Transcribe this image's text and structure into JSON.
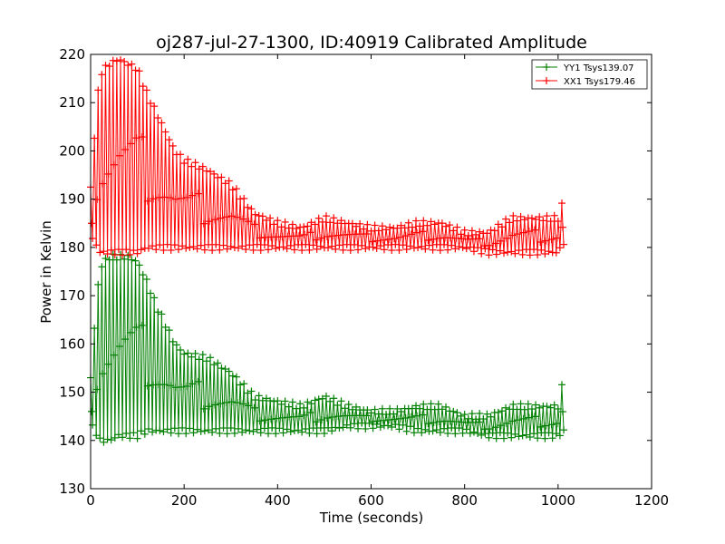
{
  "chart_data": {
    "type": "line",
    "title": "oj287-jul-27-1300, ID:40919 Calibrated Amplitude",
    "xlabel": "Time (seconds)",
    "ylabel": "Power in Kelvin",
    "xlim": [
      0,
      1200
    ],
    "ylim": [
      130,
      220
    ],
    "xticks": [
      "0",
      "200",
      "400",
      "600",
      "800",
      "1000",
      "1200"
    ],
    "yticks": [
      "130",
      "140",
      "150",
      "160",
      "170",
      "180",
      "190",
      "200",
      "210",
      "220"
    ],
    "grid": false,
    "legend_position": "top-right",
    "series": [
      {
        "name": "YY1 Tsys139.07",
        "color": "#008000",
        "marker": "+",
        "envelope": {
          "x": [
            0,
            10,
            20,
            40,
            60,
            80,
            100,
            120,
            140,
            160,
            180,
            200,
            250,
            300,
            350,
            400,
            450,
            500,
            550,
            600,
            650,
            700,
            750,
            800,
            850,
            900,
            950,
            1000,
            1012
          ],
          "low": [
            143,
            142,
            140,
            140,
            141,
            141,
            141,
            142,
            142,
            142,
            142,
            142,
            142,
            142,
            142,
            142,
            142,
            142,
            143,
            143,
            143,
            142,
            142,
            142,
            141,
            141,
            141,
            141,
            142
          ],
          "high": [
            153,
            166,
            176,
            178,
            178,
            178,
            177,
            173,
            168,
            164,
            160,
            158,
            157,
            154,
            149,
            148,
            147,
            149,
            147,
            146,
            146,
            147,
            147,
            145,
            145,
            147,
            147,
            147,
            153
          ]
        }
      },
      {
        "name": "XX1 Tsys179.46",
        "color": "#ff0000",
        "marker": "+",
        "envelope": {
          "x": [
            0,
            10,
            20,
            40,
            60,
            80,
            100,
            120,
            140,
            160,
            180,
            200,
            250,
            300,
            350,
            400,
            450,
            500,
            550,
            600,
            650,
            700,
            750,
            800,
            850,
            900,
            950,
            1000,
            1012
          ],
          "low": [
            182,
            181,
            179,
            179,
            179,
            179,
            179,
            180,
            180,
            180,
            180,
            180,
            180,
            180,
            180,
            180,
            180,
            180,
            180,
            180,
            180,
            180,
            180,
            180,
            179,
            179,
            179,
            179,
            181
          ],
          "high": [
            192,
            206,
            216,
            218,
            219,
            218,
            217,
            212,
            208,
            204,
            200,
            198,
            196,
            193,
            187,
            185,
            184,
            186,
            185,
            184,
            184,
            185,
            185,
            183,
            183,
            186,
            186,
            186,
            190
          ]
        }
      }
    ]
  }
}
